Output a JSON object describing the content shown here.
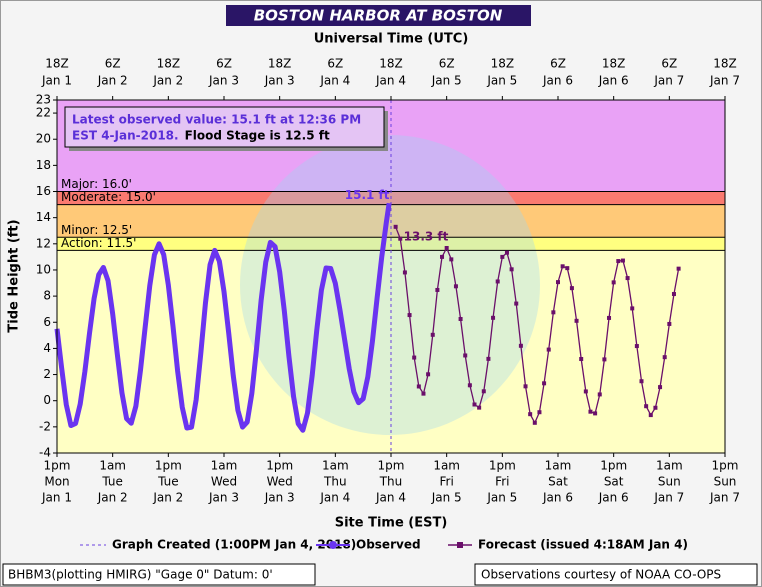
{
  "chart_data": {
    "type": "line",
    "title": "BOSTON HARBOR AT BOSTON",
    "top_axis_label": "Universal Time (UTC)",
    "xlabel": "Site Time (EST)",
    "ylabel": "Tide Height (ft)",
    "xlim": [
      0,
      144
    ],
    "ylim": [
      -4,
      23
    ],
    "yticks": [
      -4,
      -2,
      0,
      2,
      4,
      6,
      8,
      10,
      12,
      14,
      16,
      18,
      20,
      22,
      23
    ],
    "grid": false,
    "xticks": [
      {
        "value": 0,
        "label": "1pm",
        "day": "Mon",
        "date": "Jan 1"
      },
      {
        "value": 12,
        "label": "1am",
        "day": "Tue",
        "date": "Jan 2"
      },
      {
        "value": 24,
        "label": "1pm",
        "day": "Tue",
        "date": "Jan 2"
      },
      {
        "value": 36,
        "label": "1am",
        "day": "Wed",
        "date": "Jan 3"
      },
      {
        "value": 48,
        "label": "1pm",
        "day": "Wed",
        "date": "Jan 3"
      },
      {
        "value": 60,
        "label": "1am",
        "day": "Thu",
        "date": "Jan 4"
      },
      {
        "value": 72,
        "label": "1pm",
        "day": "Thu",
        "date": "Jan 4"
      },
      {
        "value": 84,
        "label": "1am",
        "day": "Fri",
        "date": "Jan 5"
      },
      {
        "value": 96,
        "label": "1pm",
        "day": "Fri",
        "date": "Jan 5"
      },
      {
        "value": 108,
        "label": "1am",
        "day": "Sat",
        "date": "Jan 6"
      },
      {
        "value": 120,
        "label": "1pm",
        "day": "Sat",
        "date": "Jan 6"
      },
      {
        "value": 132,
        "label": "1am",
        "day": "Sun",
        "date": "Jan 7"
      },
      {
        "value": 144,
        "label": "1pm",
        "day": "Sun",
        "date": "Jan 7"
      }
    ],
    "x2ticks": [
      {
        "value": 0,
        "label": "18Z",
        "date": "Jan 1"
      },
      {
        "value": 12,
        "label": "6Z",
        "date": "Jan 2"
      },
      {
        "value": 24,
        "label": "18Z",
        "date": "Jan 2"
      },
      {
        "value": 36,
        "label": "6Z",
        "date": "Jan 3"
      },
      {
        "value": 48,
        "label": "18Z",
        "date": "Jan 3"
      },
      {
        "value": 60,
        "label": "6Z",
        "date": "Jan 4"
      },
      {
        "value": 72,
        "label": "18Z",
        "date": "Jan 4"
      },
      {
        "value": 84,
        "label": "6Z",
        "date": "Jan 5"
      },
      {
        "value": 96,
        "label": "18Z",
        "date": "Jan 5"
      },
      {
        "value": 108,
        "label": "6Z",
        "date": "Jan 6"
      },
      {
        "value": 120,
        "label": "18Z",
        "date": "Jan 6"
      },
      {
        "value": 132,
        "label": "6Z",
        "date": "Jan 7"
      },
      {
        "value": 144,
        "label": "18Z",
        "date": "Jan 7"
      }
    ],
    "below_color": "#ffffc4",
    "flood_categories": [
      {
        "name": "Action: 11.5'",
        "value": 11.5,
        "color": "#ffff80"
      },
      {
        "name": "Minor: 12.5'",
        "value": 12.5,
        "color": "#ffc978"
      },
      {
        "name": "Moderate: 15.0'",
        "value": 15.0,
        "color": "#fa7a70"
      },
      {
        "name": "Major: 16.0'",
        "value": 16.0,
        "color": "#e9a2f6"
      }
    ],
    "graph_created": {
      "name": "Graph Created (1:00PM Jan 4, 2018)",
      "x": 72,
      "color": "#6a40e0"
    },
    "series": [
      {
        "name": "Observed",
        "color": "#6a34f0",
        "x": [
          0,
          1,
          2,
          3,
          4,
          5,
          6,
          7,
          8,
          9,
          10,
          11,
          12,
          13,
          14,
          15,
          16,
          17,
          18,
          19,
          20,
          21,
          22,
          23,
          24,
          25,
          26,
          27,
          28,
          29,
          30,
          31,
          32,
          33,
          34,
          35,
          36,
          37,
          38,
          39,
          40,
          41,
          42,
          43,
          44,
          45,
          46,
          47,
          48,
          49,
          50,
          51,
          52,
          53,
          54,
          55,
          56,
          57,
          58,
          59,
          60,
          61,
          62,
          63,
          64,
          65,
          66,
          67,
          68,
          69,
          70,
          71,
          71.6
        ],
        "values": [
          5.5,
          2.5,
          -0.3,
          -1.9,
          -1.74,
          -0.26,
          2.21,
          5.14,
          7.83,
          9.64,
          10.19,
          9.18,
          6.65,
          3.56,
          0.6,
          -1.37,
          -1.72,
          -0.42,
          2.34,
          5.61,
          8.8,
          11.16,
          12,
          11.17,
          8.85,
          5.71,
          2.28,
          -0.5,
          -2.09,
          -2.02,
          0.09,
          3.63,
          7.46,
          10.41,
          11.5,
          10.67,
          8.34,
          5.22,
          1.91,
          -0.74,
          -2.02,
          -1.63,
          0.56,
          3.93,
          7.67,
          10.6,
          12.11,
          11.79,
          9.86,
          6.88,
          3.38,
          0.31,
          -1.76,
          -2.26,
          -0.94,
          1.9,
          5.4,
          8.46,
          10.15,
          10.11,
          8.97,
          6.93,
          4.68,
          2.43,
          0.67,
          -0.15,
          0.15,
          1.82,
          4.56,
          7.84,
          10.98,
          13.66,
          15.1
        ]
      },
      {
        "name": "Forecast (issued 4:18AM Jan 4)",
        "color": "#6a0f6a",
        "x": [
          73,
          74,
          75,
          76,
          77,
          78,
          79,
          80,
          81,
          82,
          83,
          84,
          85,
          86,
          87,
          88,
          89,
          90,
          91,
          92,
          93,
          94,
          95,
          96,
          97,
          98,
          99,
          100,
          101,
          102,
          103,
          104,
          105,
          106,
          107,
          108,
          109,
          110,
          111,
          112,
          113,
          114,
          115,
          116,
          117,
          118,
          119,
          120,
          121,
          122,
          123,
          124,
          125,
          126,
          127,
          128,
          129,
          130,
          131,
          132,
          133,
          134
        ],
        "values": [
          13.3,
          12.39,
          9.81,
          6.55,
          3.3,
          1.09,
          0.54,
          2.02,
          5.04,
          8.47,
          11.0,
          11.68,
          10.81,
          8.75,
          6.25,
          3.46,
          1.18,
          -0.29,
          -0.53,
          0.72,
          3.2,
          6.34,
          9.12,
          11.0,
          11.32,
          10.05,
          7.43,
          4.2,
          1.1,
          -1.03,
          -1.69,
          -0.88,
          1.33,
          3.91,
          6.76,
          9.07,
          10.28,
          10.14,
          8.61,
          6.11,
          3.19,
          0.71,
          -0.84,
          -0.97,
          0.48,
          3.16,
          6.33,
          9.05,
          10.68,
          10.72,
          9.38,
          7.06,
          4.18,
          1.49,
          -0.42,
          -1.1,
          -0.54,
          1.04,
          3.33,
          5.87,
          8.16,
          10.1
        ]
      }
    ],
    "annotations": [
      {
        "text": "15.1 ft",
        "x": 71.6,
        "y": 15.1
      },
      {
        "text": "13.3 ft",
        "x": 73,
        "y": 13.3
      }
    ],
    "info_box": [
      "Latest observed value: 15.1 ft at 12:36 PM",
      "EST 4-Jan-2018.",
      "Flood Stage is 12.5 ft"
    ],
    "footer_left": "BHBM3(plotting HMIRG) \"Gage 0\" Datum: 0'",
    "footer_right": "Observations courtesy of NOAA CO-OPS"
  }
}
